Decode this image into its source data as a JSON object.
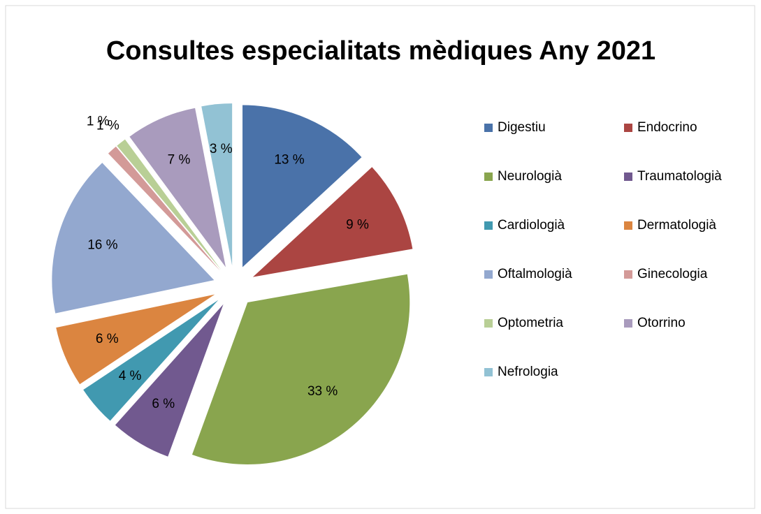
{
  "chart_data": {
    "type": "pie",
    "title": "Consultes especialitats mèdiques Any 2021",
    "categories": [
      "Digestiu",
      "Endocrino",
      "Neurologià",
      "Traumatologià",
      "Cardiologià",
      "Dermatologià",
      "Oftalmologià",
      "Ginecologia",
      "Optometria",
      "Otorrino",
      "Nefrologia"
    ],
    "values": [
      13,
      9,
      33,
      6,
      4,
      6,
      16,
      1,
      1,
      7,
      3
    ],
    "value_labels": [
      "13 %",
      "9 %",
      "33 %",
      "6 %",
      "4 %",
      "6 %",
      "16 %",
      "1 %",
      "1 %",
      "7 %",
      "3 %"
    ],
    "colors": [
      "#4a72a9",
      "#ab4542",
      "#89a54e",
      "#71598f",
      "#4199b0",
      "#db8540",
      "#93a8cf",
      "#d39a98",
      "#b9cf96",
      "#a99bbd",
      "#92c2d4"
    ],
    "legend": "right",
    "exploded": true
  }
}
